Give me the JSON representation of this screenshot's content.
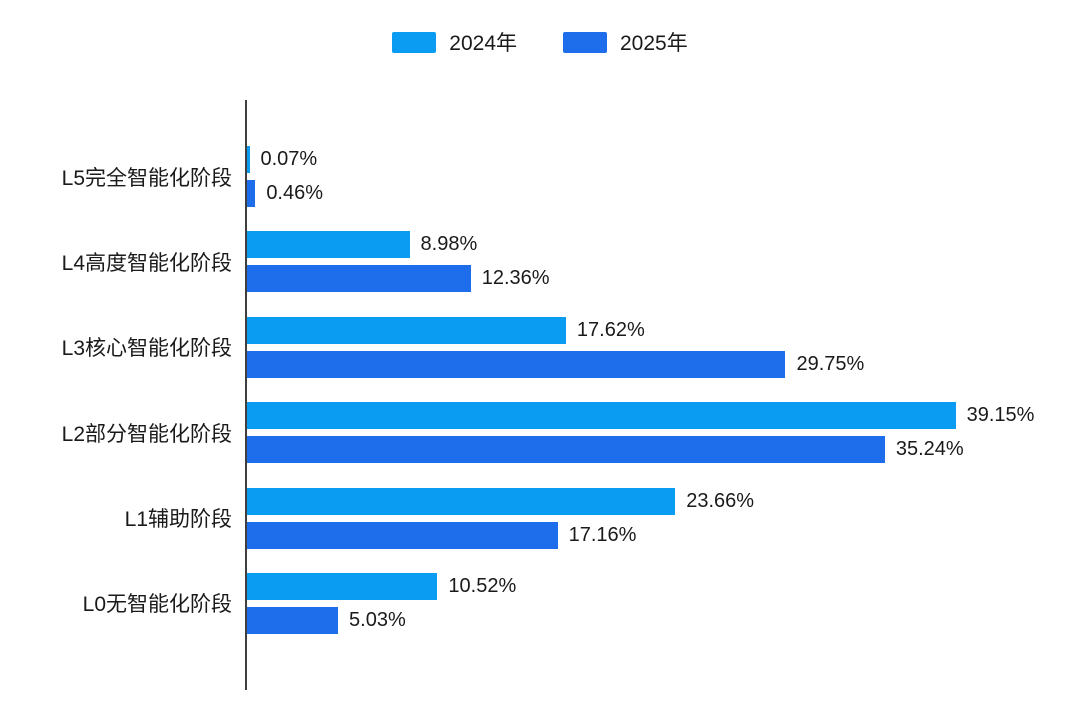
{
  "chart_data": {
    "type": "bar",
    "orientation": "horizontal",
    "title": "",
    "xlabel": "",
    "ylabel": "",
    "grid": false,
    "legend_position": "top",
    "xlim": [
      0,
      43
    ],
    "categories": [
      "L5完全智能化阶段",
      "L4高度智能化阶段",
      "L3核心智能化阶段",
      "L2部分智能化阶段",
      "L1辅助阶段",
      "L0无智能化阶段"
    ],
    "series": [
      {
        "name": "2024年",
        "color": "#0a9bf2",
        "values": [
          0.07,
          8.98,
          17.62,
          39.15,
          23.66,
          10.52
        ]
      },
      {
        "name": "2025年",
        "color": "#1e6eeb",
        "values": [
          0.46,
          12.36,
          29.75,
          35.24,
          17.16,
          5.03
        ]
      }
    ],
    "value_labels": [
      [
        "0.07%",
        "0.46%"
      ],
      [
        "8.98%",
        "12.36%"
      ],
      [
        "17.62%",
        "29.75%"
      ],
      [
        "39.15%",
        "35.24%"
      ],
      [
        "23.66%",
        "17.16%"
      ],
      [
        "10.52%",
        "5.03%"
      ]
    ],
    "axis_color": "#3f3f3f",
    "text_color": "#1a1a1a"
  }
}
